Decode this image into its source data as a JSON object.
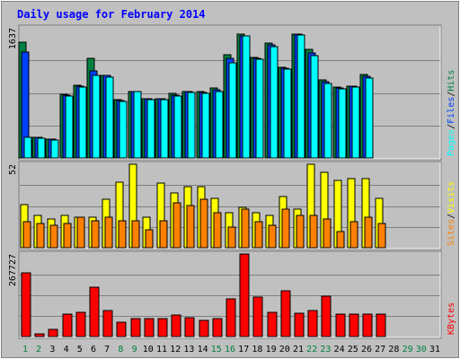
{
  "chart_data": {
    "type": "bar",
    "title": "Daily usage for February 2014",
    "x_axis": {
      "days": [
        "1",
        "2",
        "3",
        "4",
        "5",
        "6",
        "7",
        "8",
        "9",
        "10",
        "11",
        "12",
        "13",
        "14",
        "15",
        "16",
        "17",
        "18",
        "19",
        "20",
        "21",
        "22",
        "23",
        "24",
        "25",
        "26",
        "27",
        "28",
        "29",
        "30",
        "31"
      ],
      "weekend_days": [
        "1",
        "2",
        "8",
        "9",
        "15",
        "16",
        "22",
        "23",
        "29",
        "30"
      ]
    },
    "panels": [
      {
        "id": "hits",
        "max_label": "1637",
        "ymax": 1637,
        "legend": [
          "Pages",
          "/",
          "Files",
          "/",
          "Hits"
        ],
        "series": [
          {
            "name": "Hits",
            "color": "#008040",
            "values": [
              1460,
              260,
              240,
              800,
              920,
              1250,
              1040,
              730,
              840,
              740,
              740,
              810,
              840,
              830,
              880,
              1300,
              1560,
              1260,
              1440,
              1140,
              1560,
              1370,
              980,
              890,
              900,
              1050,
              0,
              0,
              0,
              0,
              0
            ]
          },
          {
            "name": "Files",
            "color": "#0040ff",
            "values": [
              1330,
              260,
              235,
              790,
              900,
              1100,
              1040,
              720,
              840,
              740,
              740,
              790,
              830,
              820,
              860,
              1250,
              1540,
              1250,
              1420,
              1130,
              1560,
              1320,
              960,
              880,
              900,
              1030,
              0,
              0,
              0,
              0,
              0
            ]
          },
          {
            "name": "Pages",
            "color": "#00ffff",
            "values": [
              260,
              250,
              230,
              780,
              890,
              1040,
              1020,
              710,
              830,
              730,
              730,
              780,
              820,
              810,
              840,
              1200,
              1530,
              1240,
              1400,
              1120,
              1550,
              1290,
              940,
              870,
              890,
              1010,
              0,
              0,
              0,
              0,
              0
            ]
          }
        ]
      },
      {
        "id": "visits",
        "max_label": "52",
        "ymax": 52,
        "legend": [
          "Sites",
          "/",
          "Visits"
        ],
        "series": [
          {
            "name": "Visits",
            "color": "#ffff00",
            "values": [
              27,
              20,
              18,
              20,
              19,
              19,
              30,
              41,
              52,
              19,
              40,
              34,
              38,
              38,
              31,
              22,
              25,
              22,
              20,
              32,
              24,
              52,
              47,
              42,
              43,
              43,
              31,
              0,
              0,
              0,
              0
            ]
          },
          {
            "name": "Sites",
            "color": "#ff8000",
            "values": [
              16,
              15,
              14,
              15,
              19,
              17,
              19,
              17,
              17,
              11,
              17,
              28,
              26,
              30,
              22,
              13,
              24,
              16,
              14,
              24,
              20,
              20,
              18,
              10,
              16,
              19,
              15,
              0,
              0,
              0,
              0
            ]
          }
        ]
      },
      {
        "id": "kbytes",
        "max_label": "267727",
        "ymax": 267727,
        "legend": [
          "KBytes"
        ],
        "series": [
          {
            "name": "KBytes",
            "color": "#ff0000",
            "values": [
              206000,
              8000,
              22000,
              73000,
              80000,
              161000,
              84000,
              46000,
              58000,
              57000,
              58000,
              69000,
              60000,
              52000,
              58000,
              122000,
              267727,
              128000,
              78000,
              147000,
              76000,
              84000,
              130000,
              74000,
              72000,
              72000,
              72000,
              0,
              0,
              0,
              0
            ]
          }
        ]
      }
    ],
    "colors": {
      "title": "#0000ff",
      "day_weekday": "#000000",
      "day_weekend": "#008040",
      "background": "#c0c0c0",
      "grid": "#808080"
    }
  }
}
